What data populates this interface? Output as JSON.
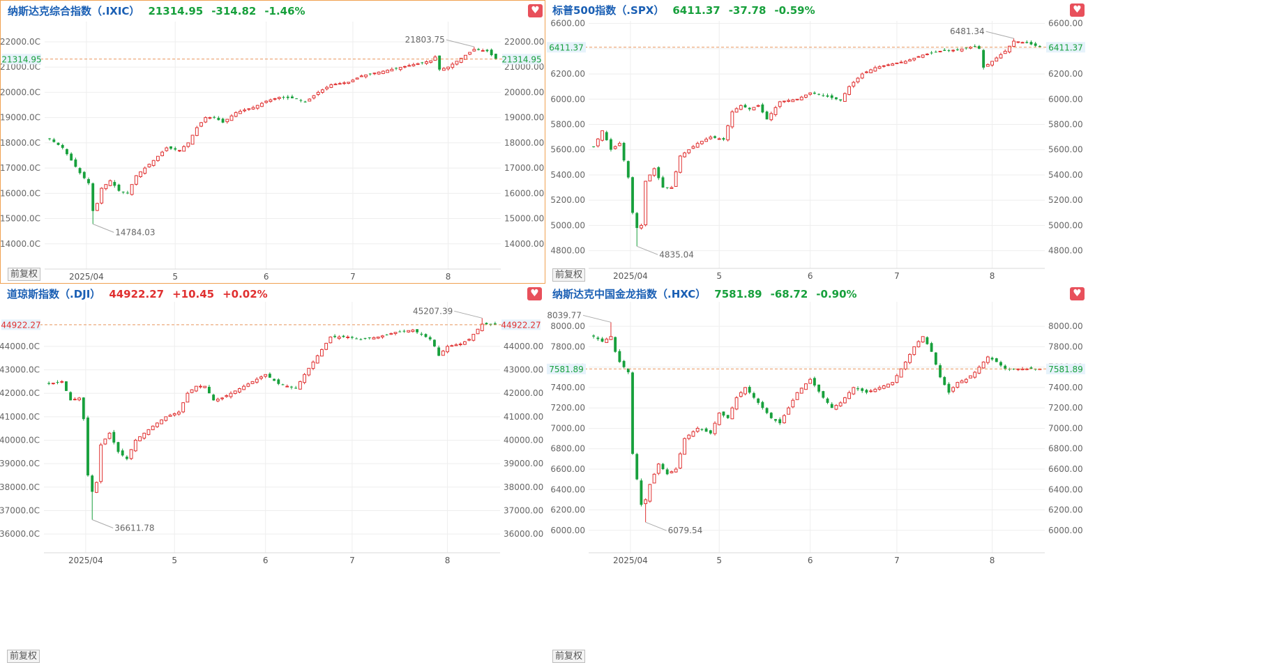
{
  "panels": [
    {
      "id": "ixic",
      "name": "纳斯达克综合指数（.IXIC）",
      "price": "21314.95",
      "change": "-314.82",
      "pct": "-1.46%",
      "direction": "down",
      "selected": true,
      "adjust_label": "前复权",
      "fav_icon": "heart-icon",
      "chart_data": {
        "type": "candlestick",
        "ylim": [
          13000,
          22800
        ],
        "yticks": [
          22000,
          21000,
          20000,
          19000,
          18000,
          17000,
          16000,
          15000,
          14000
        ],
        "ytick_labels_left": [
          "22000.0C",
          "21000.0C",
          "20000.0C",
          "19000.0C",
          "18000.0C",
          "17000.0C",
          "16000.0C",
          "15000.0C",
          "14000.0C"
        ],
        "ytick_labels_right": [
          "22000.00",
          "21000.00",
          "20000.00",
          "19000.00",
          "18000.00",
          "17000.00",
          "16000.00",
          "15000.00",
          "14000.00"
        ],
        "xticks": [
          {
            "label": "2025/04",
            "x": 8.5
          },
          {
            "label": "5",
            "x": 29
          },
          {
            "label": "6",
            "x": 50
          },
          {
            "label": "7",
            "x": 70
          },
          {
            "label": "8",
            "x": 92
          }
        ],
        "n": 104,
        "last": 21314.95,
        "last_label": "21314.95",
        "last_color": "#17a03c",
        "max": {
          "value": 21803.75,
          "label": "21803.75",
          "index": 98
        },
        "min": {
          "value": 14784.03,
          "label": "14784.03",
          "index": 10
        },
        "anchors": [
          [
            0,
            18150
          ],
          [
            3,
            17800
          ],
          [
            5,
            17300
          ],
          [
            7,
            16800
          ],
          [
            9,
            16400
          ],
          [
            10,
            15300
          ],
          [
            11,
            15600
          ],
          [
            12,
            16200
          ],
          [
            14,
            16500
          ],
          [
            16,
            16100
          ],
          [
            18,
            16000
          ],
          [
            20,
            16700
          ],
          [
            24,
            17300
          ],
          [
            27,
            17800
          ],
          [
            30,
            17700
          ],
          [
            32,
            18000
          ],
          [
            34,
            18600
          ],
          [
            36,
            19000
          ],
          [
            38,
            19000
          ],
          [
            40,
            18800
          ],
          [
            43,
            19200
          ],
          [
            47,
            19400
          ],
          [
            50,
            19650
          ],
          [
            53,
            19800
          ],
          [
            57,
            19750
          ],
          [
            59,
            19600
          ],
          [
            62,
            20000
          ],
          [
            65,
            20300
          ],
          [
            69,
            20400
          ],
          [
            72,
            20650
          ],
          [
            76,
            20800
          ],
          [
            80,
            20950
          ],
          [
            84,
            21100
          ],
          [
            88,
            21250
          ],
          [
            89,
            21400
          ],
          [
            90,
            20900
          ],
          [
            92,
            21000
          ],
          [
            95,
            21350
          ],
          [
            98,
            21700
          ],
          [
            101,
            21630
          ],
          [
            103,
            21314.95
          ]
        ]
      }
    },
    {
      "id": "spx",
      "name": "标普500指数（.SPX）",
      "price": "6411.37",
      "change": "-37.78",
      "pct": "-0.59%",
      "direction": "down",
      "selected": false,
      "adjust_label": "前复权",
      "fav_icon": "heart-icon",
      "chart_data": {
        "type": "candlestick",
        "ylim": [
          4660,
          6620
        ],
        "yticks": [
          6600,
          6400,
          6200,
          6000,
          5800,
          5600,
          5400,
          5200,
          5000,
          4800
        ],
        "ytick_labels_left": [
          "6600.00",
          "6400.00",
          "6200.00",
          "6000.00",
          "5800.00",
          "5600.00",
          "5400.00",
          "5200.00",
          "5000.00",
          "4800.00"
        ],
        "ytick_labels_right": [
          "6600.00",
          "6400.00",
          "6200.00",
          "6000.00",
          "5800.00",
          "5600.00",
          "5400.00",
          "5200.00",
          "5000.00",
          "4800.00"
        ],
        "xticks": [
          {
            "label": "2025/04",
            "x": 8.5
          },
          {
            "label": "5",
            "x": 29
          },
          {
            "label": "6",
            "x": 50
          },
          {
            "label": "7",
            "x": 70
          },
          {
            "label": "8",
            "x": 92
          }
        ],
        "n": 104,
        "last": 6411.37,
        "last_label": "6411.37",
        "last_color": "#17a03c",
        "max": {
          "value": 6481.34,
          "label": "6481.34",
          "index": 97
        },
        "min": {
          "value": 4835.04,
          "label": "4835.04",
          "index": 10
        },
        "anchors": [
          [
            0,
            5620
          ],
          [
            2,
            5750
          ],
          [
            4,
            5600
          ],
          [
            6,
            5650
          ],
          [
            8,
            5380
          ],
          [
            9,
            5100
          ],
          [
            10,
            4980
          ],
          [
            11,
            5000
          ],
          [
            12,
            5350
          ],
          [
            14,
            5450
          ],
          [
            16,
            5300
          ],
          [
            18,
            5300
          ],
          [
            20,
            5550
          ],
          [
            24,
            5650
          ],
          [
            27,
            5700
          ],
          [
            30,
            5680
          ],
          [
            32,
            5900
          ],
          [
            34,
            5950
          ],
          [
            36,
            5920
          ],
          [
            38,
            5950
          ],
          [
            40,
            5840
          ],
          [
            43,
            5980
          ],
          [
            47,
            6000
          ],
          [
            50,
            6050
          ],
          [
            53,
            6030
          ],
          [
            57,
            5990
          ],
          [
            59,
            6100
          ],
          [
            62,
            6200
          ],
          [
            65,
            6250
          ],
          [
            69,
            6280
          ],
          [
            72,
            6300
          ],
          [
            76,
            6350
          ],
          [
            80,
            6380
          ],
          [
            84,
            6390
          ],
          [
            88,
            6420
          ],
          [
            89,
            6400
          ],
          [
            90,
            6250
          ],
          [
            92,
            6300
          ],
          [
            95,
            6380
          ],
          [
            97,
            6460
          ],
          [
            100,
            6445
          ],
          [
            103,
            6411.37
          ]
        ]
      }
    },
    {
      "id": "dji",
      "name": "道琼斯指数（.DJI）",
      "price": "44922.27",
      "change": "+10.45",
      "pct": "+0.02%",
      "direction": "up",
      "selected": false,
      "adjust_label": "前复权",
      "fav_icon": "heart-icon",
      "chart_data": {
        "type": "candlestick",
        "ylim": [
          35200,
          45900
        ],
        "yticks": [
          44000,
          43000,
          42000,
          41000,
          40000,
          39000,
          38000,
          37000,
          36000
        ],
        "ytick_labels_left": [
          "44000.0C",
          "43000.0C",
          "42000.0C",
          "41000.0C",
          "40000.0C",
          "39000.0C",
          "38000.0C",
          "37000.0C",
          "36000.0C"
        ],
        "ytick_labels_right": [
          "44000.00",
          "43000.00",
          "42000.00",
          "41000.00",
          "40000.00",
          "39000.00",
          "38000.00",
          "37000.00",
          "36000.00"
        ],
        "xticks": [
          {
            "label": "2025/04",
            "x": 8.5
          },
          {
            "label": "5",
            "x": 29
          },
          {
            "label": "6",
            "x": 50
          },
          {
            "label": "7",
            "x": 70
          },
          {
            "label": "8",
            "x": 92
          }
        ],
        "n": 104,
        "last": 44922.27,
        "last_label": "44922.27",
        "last_color": "#e03030",
        "max": {
          "value": 45207.39,
          "label": "45207.39",
          "index": 100
        },
        "min": {
          "value": 36611.78,
          "label": "36611.78",
          "index": 10
        },
        "anchors": [
          [
            0,
            42400
          ],
          [
            3,
            42500
          ],
          [
            5,
            41700
          ],
          [
            7,
            41800
          ],
          [
            8,
            40900
          ],
          [
            9,
            38500
          ],
          [
            10,
            37800
          ],
          [
            11,
            38200
          ],
          [
            12,
            39800
          ],
          [
            14,
            40300
          ],
          [
            16,
            39500
          ],
          [
            18,
            39200
          ],
          [
            20,
            40000
          ],
          [
            24,
            40600
          ],
          [
            27,
            41000
          ],
          [
            30,
            41200
          ],
          [
            32,
            42000
          ],
          [
            34,
            42300
          ],
          [
            36,
            42300
          ],
          [
            38,
            41700
          ],
          [
            40,
            41800
          ],
          [
            43,
            42100
          ],
          [
            47,
            42500
          ],
          [
            50,
            42800
          ],
          [
            53,
            42400
          ],
          [
            57,
            42200
          ],
          [
            59,
            42800
          ],
          [
            62,
            43600
          ],
          [
            65,
            44400
          ],
          [
            69,
            44400
          ],
          [
            72,
            44300
          ],
          [
            76,
            44400
          ],
          [
            80,
            44600
          ],
          [
            84,
            44700
          ],
          [
            88,
            44300
          ],
          [
            89,
            44000
          ],
          [
            90,
            43600
          ],
          [
            92,
            44000
          ],
          [
            95,
            44100
          ],
          [
            97,
            44300
          ],
          [
            100,
            44950
          ],
          [
            103,
            44922.27
          ]
        ]
      }
    },
    {
      "id": "hxc",
      "name": "纳斯达克中国金龙指数（.HXC）",
      "price": "7581.89",
      "change": "-68.72",
      "pct": "-0.90%",
      "direction": "down",
      "selected": false,
      "adjust_label": "前复权",
      "fav_icon": "heart-icon",
      "chart_data": {
        "type": "candlestick",
        "ylim": [
          5780,
          8240
        ],
        "yticks": [
          8000,
          7800,
          7600,
          7400,
          7200,
          7000,
          6800,
          6600,
          6400,
          6200,
          6000
        ],
        "ytick_labels_left": [
          "8000.00",
          "7800.00",
          "7600.00",
          "7400.00",
          "7200.00",
          "7000.00",
          "6800.00",
          "6600.00",
          "6400.00",
          "6200.00",
          "6000.00"
        ],
        "ytick_labels_right": [
          "8000.00",
          "7800.00",
          "7600.00",
          "7400.00",
          "7200.00",
          "7000.00",
          "6800.00",
          "6600.00",
          "6400.00",
          "6200.00",
          "6000.00"
        ],
        "xticks": [
          {
            "label": "2025/04",
            "x": 8.5
          },
          {
            "label": "5",
            "x": 29
          },
          {
            "label": "6",
            "x": 50
          },
          {
            "label": "7",
            "x": 70
          },
          {
            "label": "8",
            "x": 92
          }
        ],
        "n": 104,
        "last": 7581.89,
        "last_label": "7581.89",
        "last_color": "#17a03c",
        "max": {
          "value": 8039.77,
          "label": "8039.77",
          "index": 4
        },
        "min": {
          "value": 6079.54,
          "label": "6079.54",
          "index": 12
        },
        "anchors": [
          [
            0,
            7900
          ],
          [
            2,
            7850
          ],
          [
            4,
            7900
          ],
          [
            5,
            7750
          ],
          [
            6,
            7650
          ],
          [
            8,
            7550
          ],
          [
            9,
            6750
          ],
          [
            10,
            6500
          ],
          [
            11,
            6250
          ],
          [
            12,
            6300
          ],
          [
            13,
            6450
          ],
          [
            15,
            6650
          ],
          [
            17,
            6550
          ],
          [
            19,
            6600
          ],
          [
            21,
            6900
          ],
          [
            24,
            7000
          ],
          [
            27,
            6950
          ],
          [
            29,
            7150
          ],
          [
            31,
            7100
          ],
          [
            33,
            7300
          ],
          [
            35,
            7400
          ],
          [
            37,
            7300
          ],
          [
            39,
            7200
          ],
          [
            41,
            7100
          ],
          [
            43,
            7050
          ],
          [
            45,
            7200
          ],
          [
            47,
            7350
          ],
          [
            50,
            7480
          ],
          [
            53,
            7300
          ],
          [
            55,
            7200
          ],
          [
            57,
            7250
          ],
          [
            60,
            7400
          ],
          [
            63,
            7350
          ],
          [
            66,
            7400
          ],
          [
            69,
            7450
          ],
          [
            72,
            7650
          ],
          [
            74,
            7800
          ],
          [
            76,
            7900
          ],
          [
            78,
            7750
          ],
          [
            80,
            7500
          ],
          [
            82,
            7350
          ],
          [
            84,
            7450
          ],
          [
            86,
            7480
          ],
          [
            88,
            7550
          ],
          [
            89,
            7600
          ],
          [
            91,
            7700
          ],
          [
            93,
            7650
          ],
          [
            95,
            7581.89
          ],
          [
            103,
            7581.89
          ]
        ]
      }
    }
  ]
}
